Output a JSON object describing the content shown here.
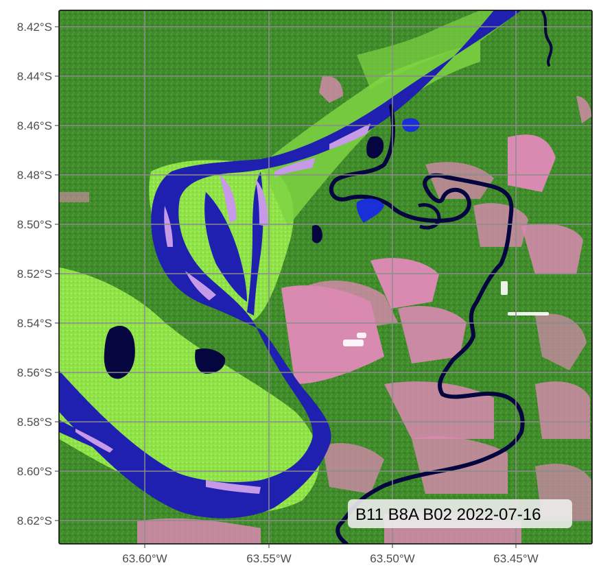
{
  "map": {
    "caption": "B11 B8A B02 2022-07-16",
    "lat_labels": [
      "8.42°S",
      "8.44°S",
      "8.46°S",
      "8.48°S",
      "8.50°S",
      "8.52°S",
      "8.54°S",
      "8.56°S",
      "8.58°S",
      "8.60°S",
      "8.62°S"
    ],
    "lon_labels": [
      "63.60°W",
      "63.55°W",
      "63.50°W",
      "63.45°W"
    ],
    "grid": true,
    "colors": {
      "forest": "#3f8a2a",
      "floodplain": "#93e84a",
      "river": "#1f1fb0",
      "dark_water": "#05053f",
      "pasture": "#d98ab0",
      "sandbar": "#c79ae8",
      "grid": "#8c8c8c"
    }
  }
}
